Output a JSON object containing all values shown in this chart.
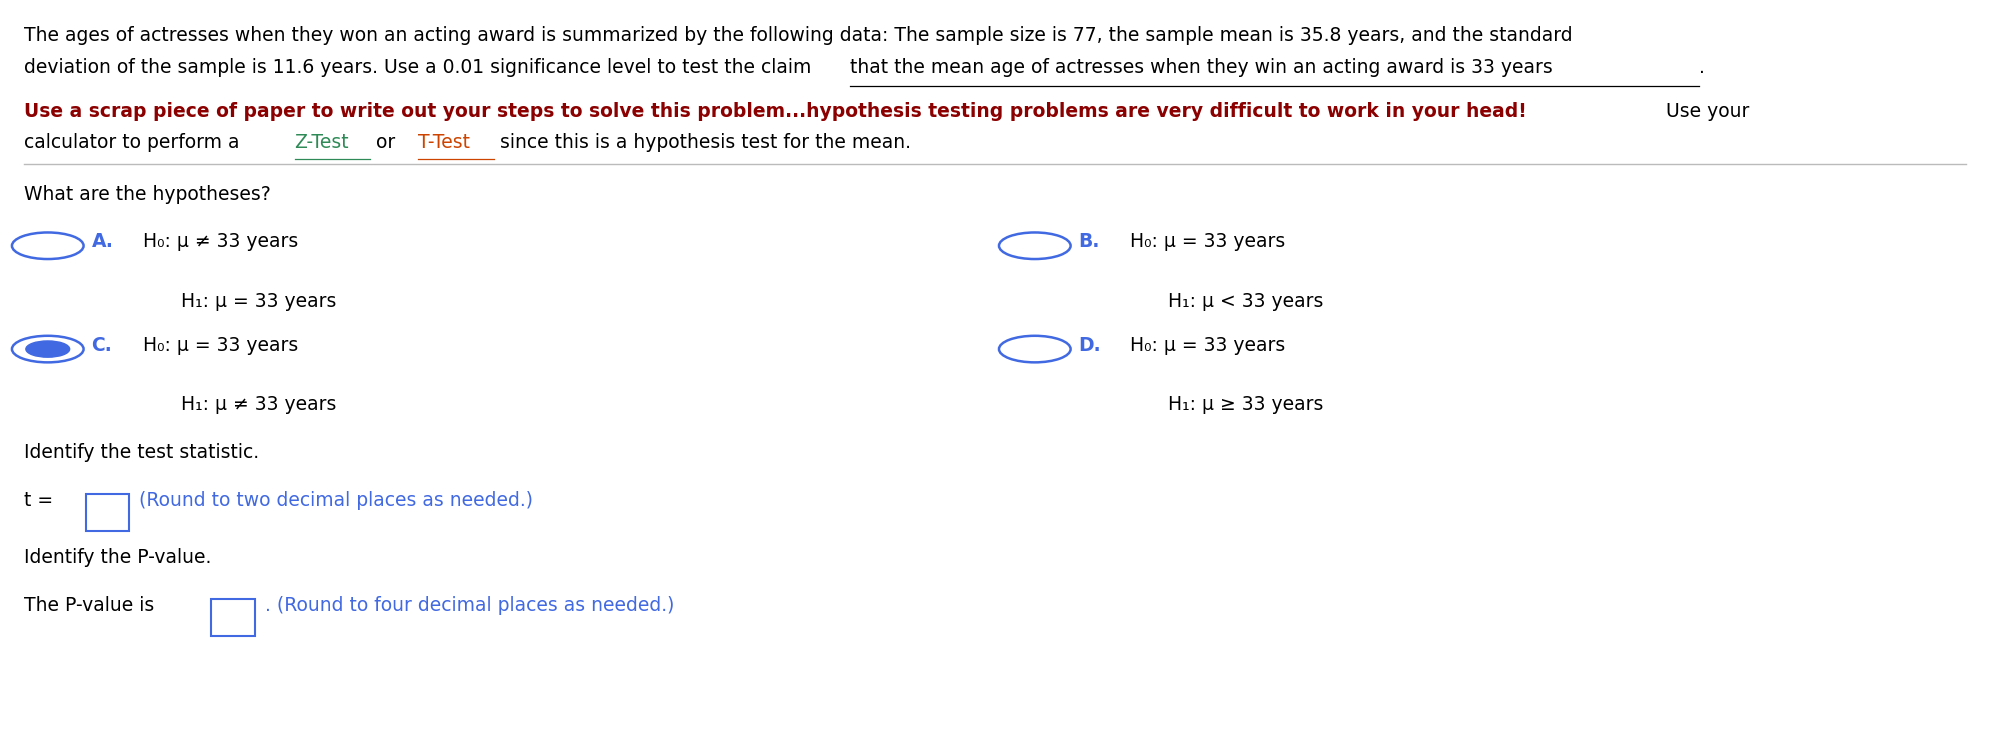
{
  "bg_color": "#ffffff",
  "fig_width": 19.9,
  "fig_height": 7.38,
  "line1": "The ages of actresses when they won an acting award is summarized by the following data: The sample size is 77, the sample mean is 35.8 years, and the standard",
  "line2_part1": "deviation of the sample is 11.6 years. Use a 0.01 significance level to test the claim ",
  "line2_underlined": "that the mean age of actresses when they win an acting award is 33 years",
  "line2_end": ".",
  "bold_text": "Use a scrap piece of paper to write out your steps to solve this problem...hypothesis testing problems are very difficult to work in your head!",
  "normal_text_use": " Use your",
  "calc_text": "calculator to perform a ",
  "ztest": "Z-Test",
  "or_text": " or ",
  "ttest": "T-Test",
  "end_text": " since this is a hypothesis test for the mean.",
  "section_label": "What are the hypotheses?",
  "option_A_label": "A.",
  "option_A_h0": "H₀: μ ≠ 33 years",
  "option_A_h1": "H₁: μ = 33 years",
  "option_A_selected": false,
  "option_B_label": "B.",
  "option_B_h0": "H₀: μ = 33 years",
  "option_B_h1": "H₁: μ < 33 years",
  "option_B_selected": false,
  "option_C_label": "C.",
  "option_C_h0": "H₀: μ = 33 years",
  "option_C_h1": "H₁: μ ≠ 33 years",
  "option_C_selected": true,
  "option_D_label": "D.",
  "option_D_h0": "H₀: μ = 33 years",
  "option_D_h1": "H₁: μ ≥ 33 years",
  "option_D_selected": false,
  "test_stat_label": "Identify the test statistic.",
  "test_stat_round": "(Round to two decimal places as needed.)",
  "t_eq": "t = ",
  "pvalue_label": "Identify the P-value.",
  "pvalue_intro": "The P-value is ",
  "pvalue_round": "(Round to four decimal places as needed.)",
  "color_dark_red": "#8B0000",
  "color_blue": "#4169E1",
  "color_green_link": "#2E8B57",
  "color_orange_link": "#CC4400",
  "font_size": 13.5
}
